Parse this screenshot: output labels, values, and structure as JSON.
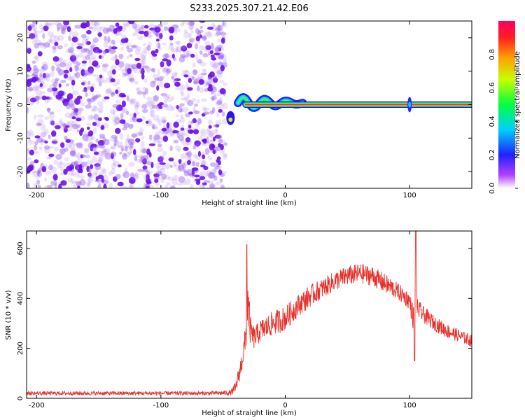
{
  "title": "S233.2025.307.21.42.E06",
  "colors": {
    "snr_line": "#e8302a",
    "scatter": "#6a1fe0",
    "axis": "#000000"
  },
  "chart_data": [
    {
      "type": "heatmap",
      "name": "spectrogram",
      "xlabel": "Height of straight line (km)",
      "ylabel": "Frequency (Hz)",
      "xlim": [
        -208,
        150
      ],
      "ylim": [
        -25,
        25
      ],
      "xticks": [
        -200,
        -100,
        0,
        100
      ],
      "yticks": [
        -20,
        -10,
        0,
        10,
        20
      ],
      "colorbar": {
        "label": "Normalized spectral amplitude",
        "range": [
          0,
          1
        ],
        "ticks": [
          0.0,
          0.2,
          0.4,
          0.6,
          0.8
        ]
      },
      "features": {
        "noise_region_x": [
          -208,
          -48
        ],
        "track_start_x": -48,
        "track_frequency": 0,
        "track_end_x": 150,
        "meander_x": [
          -38,
          14
        ],
        "meander_amplitude": 3,
        "side_spike_x": 100,
        "side_spike_halfwidth": 4
      }
    },
    {
      "type": "line",
      "name": "snr",
      "xlabel": "Height of straight line (km)",
      "ylabel": "SNR (10 * v/v)",
      "xlim": [
        -208,
        150
      ],
      "ylim": [
        0,
        670
      ],
      "xticks": [
        -200,
        -100,
        0,
        100
      ],
      "yticks": [
        0,
        200,
        400,
        600
      ],
      "series": [
        {
          "name": "SNR",
          "x": [
            -208,
            -150,
            -100,
            -60,
            -44,
            -40,
            -36,
            -32,
            -30,
            -28,
            -25,
            -20,
            -10,
            0,
            10,
            20,
            30,
            40,
            50,
            60,
            70,
            80,
            90,
            100,
            104,
            105,
            106,
            110,
            120,
            130,
            140,
            145,
            150
          ],
          "values": [
            20,
            20,
            20,
            20,
            22,
            40,
            120,
            230,
            380,
            270,
            240,
            270,
            300,
            320,
            370,
            410,
            440,
            470,
            490,
            500,
            490,
            460,
            430,
            390,
            300,
            660,
            360,
            340,
            300,
            270,
            250,
            240,
            230
          ],
          "noise_amplitude": [
            8,
            8,
            8,
            8,
            10,
            25,
            40,
            60,
            120,
            60,
            45,
            45,
            50,
            50,
            45,
            45,
            40,
            40,
            40,
            40,
            40,
            40,
            35,
            35,
            60,
            20,
            40,
            35,
            30,
            30,
            25,
            25,
            25
          ]
        }
      ],
      "spikes": [
        {
          "x": -31,
          "value": 615
        },
        {
          "x": 105,
          "value": 670
        },
        {
          "x": 104,
          "value": 150
        }
      ]
    }
  ]
}
